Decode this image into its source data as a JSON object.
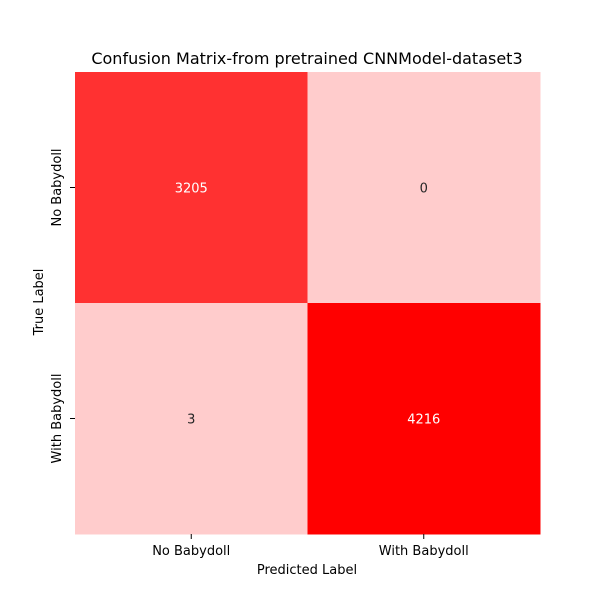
{
  "chart_data": {
    "type": "heatmap",
    "title": "Confusion Matrix-from pretrained CNNModel-dataset3",
    "xlabel": "Predicted Label",
    "ylabel": "True Label",
    "x_categories": [
      "No Babydoll",
      "With Babydoll"
    ],
    "y_categories": [
      "No Babydoll",
      "With Babydoll"
    ],
    "values": [
      [
        3205,
        0
      ],
      [
        3,
        4216
      ]
    ],
    "colorscale": {
      "low": "#ffcccc",
      "high": "#ff0000"
    },
    "colorbar": false,
    "grid": false
  }
}
